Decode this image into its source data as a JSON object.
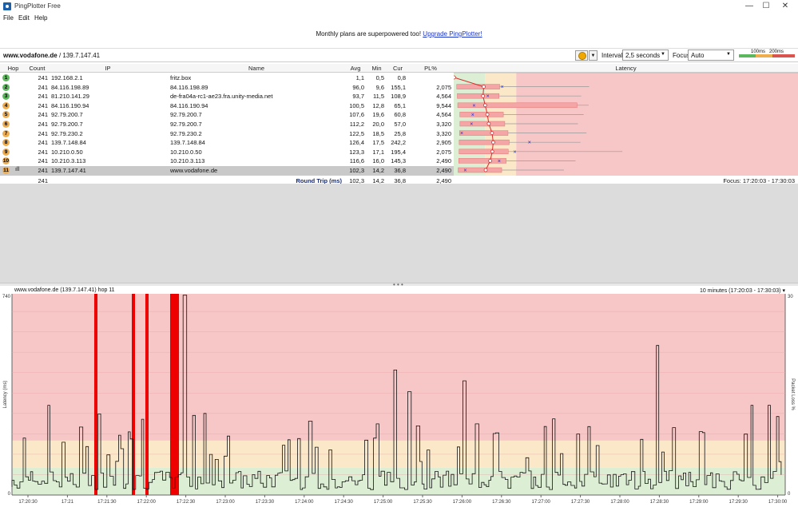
{
  "window": {
    "title": "PingPlotter Free",
    "minimize": "—",
    "maximize": "☐",
    "close": "✕"
  },
  "menu": [
    "File",
    "Edit",
    "Help"
  ],
  "banner": {
    "text": "Monthly plans are superpowered too! ",
    "link": "Upgrade PingPlotter!"
  },
  "target": {
    "host": "www.vodafone.de",
    "ip": " / 139.7.147.41"
  },
  "toolbar": {
    "interval_label": "Interval",
    "interval_value": "2,5 seconds",
    "focus_label": "Focus",
    "focus_value": "Auto",
    "legend_100": "100ms",
    "legend_200": "200ms"
  },
  "table": {
    "headers": {
      "hop": "Hop",
      "count": "Count",
      "ip": "IP",
      "name": "Name",
      "avg": "Avg",
      "min": "Min",
      "cur": "Cur",
      "pl": "PL%",
      "latency": "Latency"
    },
    "latency_scale": {
      "min": "0 ms",
      "max": "1101 ms"
    },
    "rows": [
      {
        "hop": "1",
        "count": "241",
        "ip": "192.168.2.1",
        "name": "fritz.box",
        "avg": "1,1",
        "min": "0,5",
        "cur": "0,8",
        "pl": ""
      },
      {
        "hop": "2",
        "count": "241",
        "ip": "84.116.198.89",
        "name": "84.116.198.89",
        "avg": "96,0",
        "min": "9,6",
        "cur": "155,1",
        "pl": "2,075"
      },
      {
        "hop": "3",
        "count": "241",
        "ip": "81.210.141.29",
        "name": "de-fra04a-rc1-ae23.fra.unity-media.net",
        "avg": "93,7",
        "min": "11,5",
        "cur": "108,9",
        "pl": "4,564"
      },
      {
        "hop": "4",
        "count": "241",
        "ip": "84.116.190.94",
        "name": "84.116.190.94",
        "avg": "100,5",
        "min": "12,8",
        "cur": "65,1",
        "pl": "9,544"
      },
      {
        "hop": "5",
        "count": "241",
        "ip": "92.79.200.7",
        "name": "92.79.200.7",
        "avg": "107,6",
        "min": "19,6",
        "cur": "60,8",
        "pl": "4,564"
      },
      {
        "hop": "6",
        "count": "241",
        "ip": "92.79.200.7",
        "name": "92.79.200.7",
        "avg": "112,2",
        "min": "20,0",
        "cur": "57,0",
        "pl": "3,320"
      },
      {
        "hop": "7",
        "count": "241",
        "ip": "92.79.230.2",
        "name": "92.79.230.2",
        "avg": "122,5",
        "min": "18,5",
        "cur": "25,8",
        "pl": "3,320"
      },
      {
        "hop": "8",
        "count": "241",
        "ip": "139.7.148.84",
        "name": "139.7.148.84",
        "avg": "126,4",
        "min": "17,5",
        "cur": "242,2",
        "pl": "2,905"
      },
      {
        "hop": "9",
        "count": "241",
        "ip": "10.210.0.50",
        "name": "10.210.0.50",
        "avg": "123,3",
        "min": "17,1",
        "cur": "195,4",
        "pl": "2,075"
      },
      {
        "hop": "10",
        "count": "241",
        "ip": "10.210.3.113",
        "name": "10.210.3.113",
        "avg": "116,6",
        "min": "16,0",
        "cur": "145,3",
        "pl": "2,490"
      },
      {
        "hop": "11",
        "count": "241",
        "ip": "139.7.147.41",
        "name": "www.vodafone.de",
        "avg": "102,3",
        "min": "14,2",
        "cur": "36,8",
        "pl": "2,490"
      }
    ],
    "summary": {
      "count": "241",
      "label": "Round Trip (ms)",
      "avg": "102,3",
      "min": "14,2",
      "cur": "36,8",
      "pl": "2,490",
      "focus": "Focus: 17:20:03 - 17:30:03"
    }
  },
  "chart": {
    "title": "www.vodafone.de (139.7.147.41) hop 11",
    "range": "10 minutes (17:20:03 - 17:30:03)",
    "ylabel": "Latency (ms)",
    "y2label": "Packet Loss %",
    "ymax_label": "740",
    "ymin_label": "0",
    "y2max_label": "30",
    "y2min_label": "0",
    "xticks": [
      "17:20:30",
      "17:21",
      "17:21:30",
      "17:22:00",
      "17:22:30",
      "17:23:00",
      "17:23:30",
      "17:24:00",
      "17:24:30",
      "17:25:00",
      "17:25:30",
      "17:26:00",
      "17:26:30",
      "17:27:00",
      "17:27:30",
      "17:28:00",
      "17:28:30",
      "17:29:00",
      "17:29:30",
      "17:30:00"
    ]
  },
  "colors": {
    "green": "#4caf50",
    "yellow": "#f0ad4e",
    "red": "#e53935",
    "zone_red": "#f7c6c6",
    "zone_yellow": "#fbe8c9",
    "zone_green": "#dcefd4"
  }
}
